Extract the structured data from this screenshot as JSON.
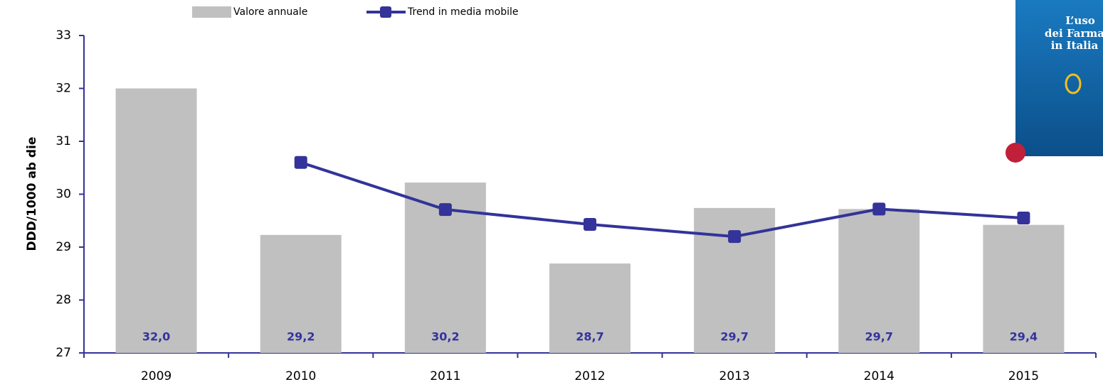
{
  "chart_data": {
    "type": "bar",
    "y_label": "DDD/1000 ab die",
    "categories": [
      "2009",
      "2010",
      "2011",
      "2012",
      "2013",
      "2014",
      "2015"
    ],
    "series": [
      {
        "name": "Valore annuale",
        "type": "bar",
        "color": "#c0c0c0",
        "values": [
          32.0,
          29.23,
          30.22,
          28.69,
          29.74,
          29.72,
          29.42
        ],
        "value_labels": [
          "32,0",
          "29,2",
          "30,2",
          "28,7",
          "29,7",
          "29,7",
          "29,4"
        ]
      },
      {
        "name": "Trend in media mobile",
        "type": "line",
        "color": "#333399",
        "values": [
          null,
          30.6,
          29.71,
          29.43,
          29.2,
          29.72,
          29.55
        ]
      }
    ],
    "ylim": [
      27,
      33
    ],
    "yticks": [
      27,
      28,
      29,
      30,
      31,
      32,
      33
    ]
  },
  "cover": {
    "lines": [
      "L’uso",
      "dei Farma",
      "in Italia"
    ]
  }
}
